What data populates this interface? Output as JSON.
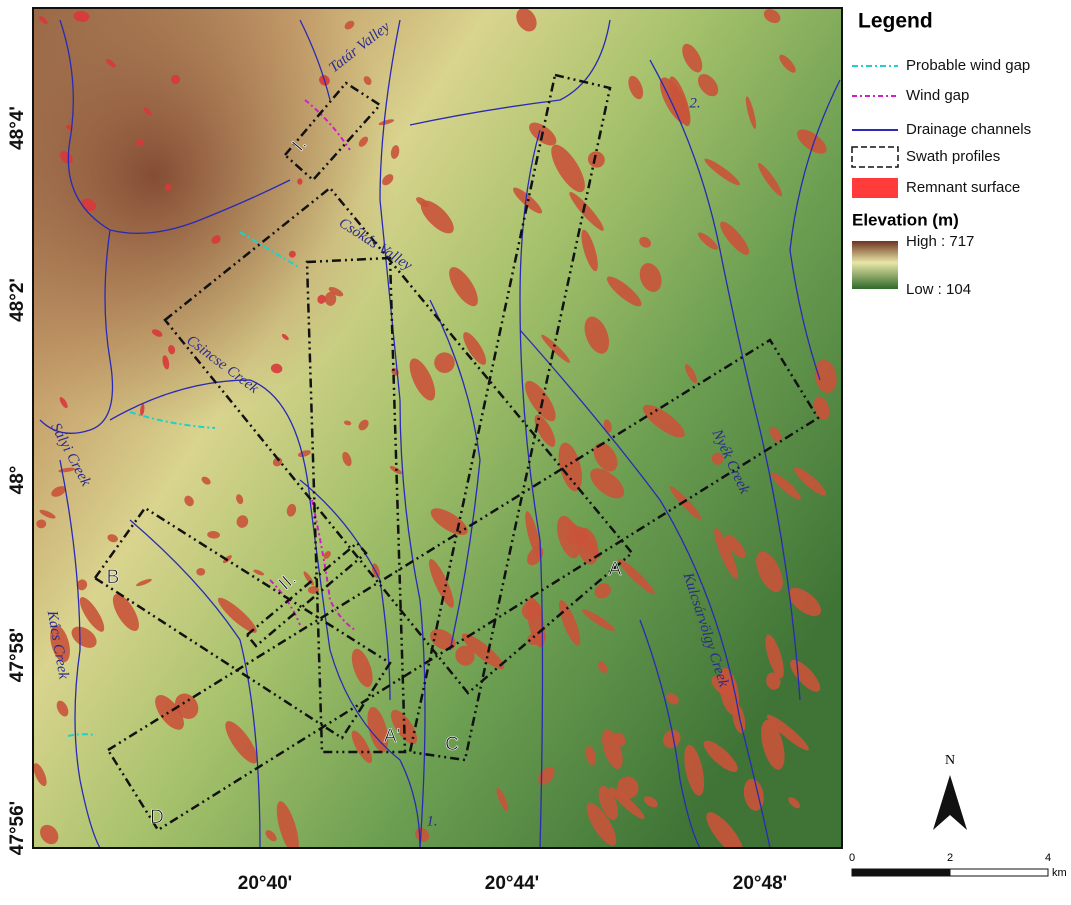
{
  "map": {
    "latitude_labels": [
      "48°4'",
      "48°2'",
      "48°",
      "47°58'",
      "47°56'"
    ],
    "longitude_labels": [
      "20°40'",
      "20°44'",
      "20°48'"
    ],
    "place_labels": [
      "Tatár Valley",
      "Csókás Valley",
      "Csincse Creek",
      "Sályi Creek",
      "Kács Creek",
      "Nyék Creek",
      "Kulcsárvölgy Creek",
      "1.",
      "2."
    ],
    "swath_labels": [
      "I.",
      "II.",
      "A",
      "A'",
      "B",
      "C",
      "D"
    ],
    "north": "N",
    "scale": {
      "ticks": [
        "0",
        "2",
        "4"
      ],
      "unit": "km"
    }
  },
  "legend": {
    "title": "Legend",
    "items": [
      "Probable wind gap",
      "Wind gap",
      "Drainage channels",
      "Swath profiles",
      "Remnant surface"
    ],
    "elevation_title": "Elevation (m)",
    "high": "High : 717",
    "low": "Low : 104"
  }
}
